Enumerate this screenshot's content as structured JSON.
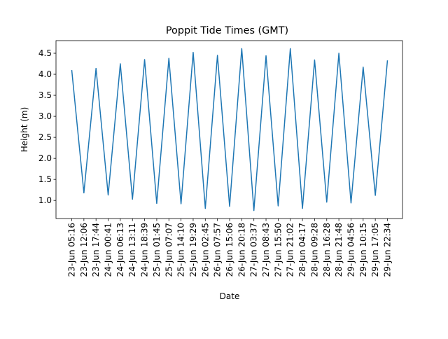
{
  "chart_data": {
    "type": "line",
    "title": "Poppit Tide Times (GMT)",
    "xlabel": "Date",
    "ylabel": "Height (m)",
    "x": [
      "23-Jun 05:16",
      "23-Jun 12:06",
      "23-Jun 17:44",
      "24-Jun 00:41",
      "24-Jun 06:13",
      "24-Jun 13:11",
      "24-Jun 18:39",
      "25-Jun 01:45",
      "25-Jun 07:07",
      "25-Jun 14:10",
      "25-Jun 19:29",
      "26-Jun 02:45",
      "26-Jun 07:57",
      "26-Jun 15:06",
      "26-Jun 20:18",
      "27-Jun 03:37",
      "27-Jun 08:43",
      "27-Jun 15:50",
      "27-Jun 21:02",
      "28-Jun 04:17",
      "28-Jun 09:28",
      "28-Jun 16:28",
      "28-Jun 21:48",
      "29-Jun 04:56",
      "29-Jun 10:15",
      "29-Jun 17:05",
      "29-Jun 22:34"
    ],
    "series": [
      {
        "values": [
          4.1,
          1.18,
          4.14,
          1.13,
          4.25,
          1.03,
          4.35,
          0.93,
          4.38,
          0.92,
          4.52,
          0.81,
          4.45,
          0.86,
          4.61,
          0.76,
          4.44,
          0.87,
          4.61,
          0.81,
          4.34,
          0.96,
          4.5,
          0.94,
          4.17,
          1.12,
          4.33
        ]
      }
    ],
    "yticks": [
      1.0,
      1.5,
      2.0,
      2.5,
      3.0,
      3.5,
      4.0,
      4.5
    ],
    "ytick_labels": [
      "1.0",
      "1.5",
      "2.0",
      "2.5",
      "3.0",
      "3.5",
      "4.0",
      "4.5"
    ],
    "ylim": [
      0.57,
      4.8
    ],
    "line_color": "#1f77b4",
    "grid": false,
    "legend": "none"
  }
}
